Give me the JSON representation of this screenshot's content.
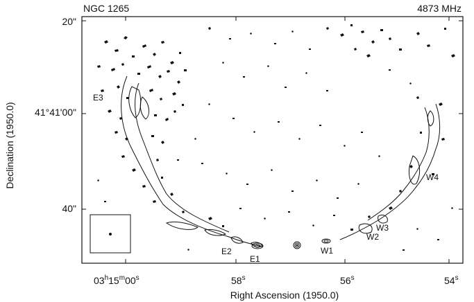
{
  "title_left": "NGC 1265",
  "title_right": "4873 MHz",
  "axes": {
    "xlabel": "Right Ascension (1950.0)",
    "ylabel": "Declination (1950.0)",
    "x_ticks": {
      "t1": {
        "h": "03",
        "m": "15",
        "s": "00",
        "su_h": "h",
        "su_m": "m",
        "su_s": "s"
      },
      "t2": {
        "v": "58",
        "s": "s"
      },
      "t3": {
        "v": "56",
        "s": "s"
      },
      "t4": {
        "v": "54",
        "s": "s"
      }
    },
    "y_ticks": {
      "top": "20\"",
      "mid": "41°41'00\"",
      "low": "40\""
    }
  },
  "components": {
    "e1": "E1",
    "e2": "E2",
    "e3": "E3",
    "w1": "W1",
    "w2": "W2",
    "w3": "W3",
    "w4": "W4"
  },
  "colors": {
    "ink": "#111111",
    "background": "#ffffff"
  }
}
